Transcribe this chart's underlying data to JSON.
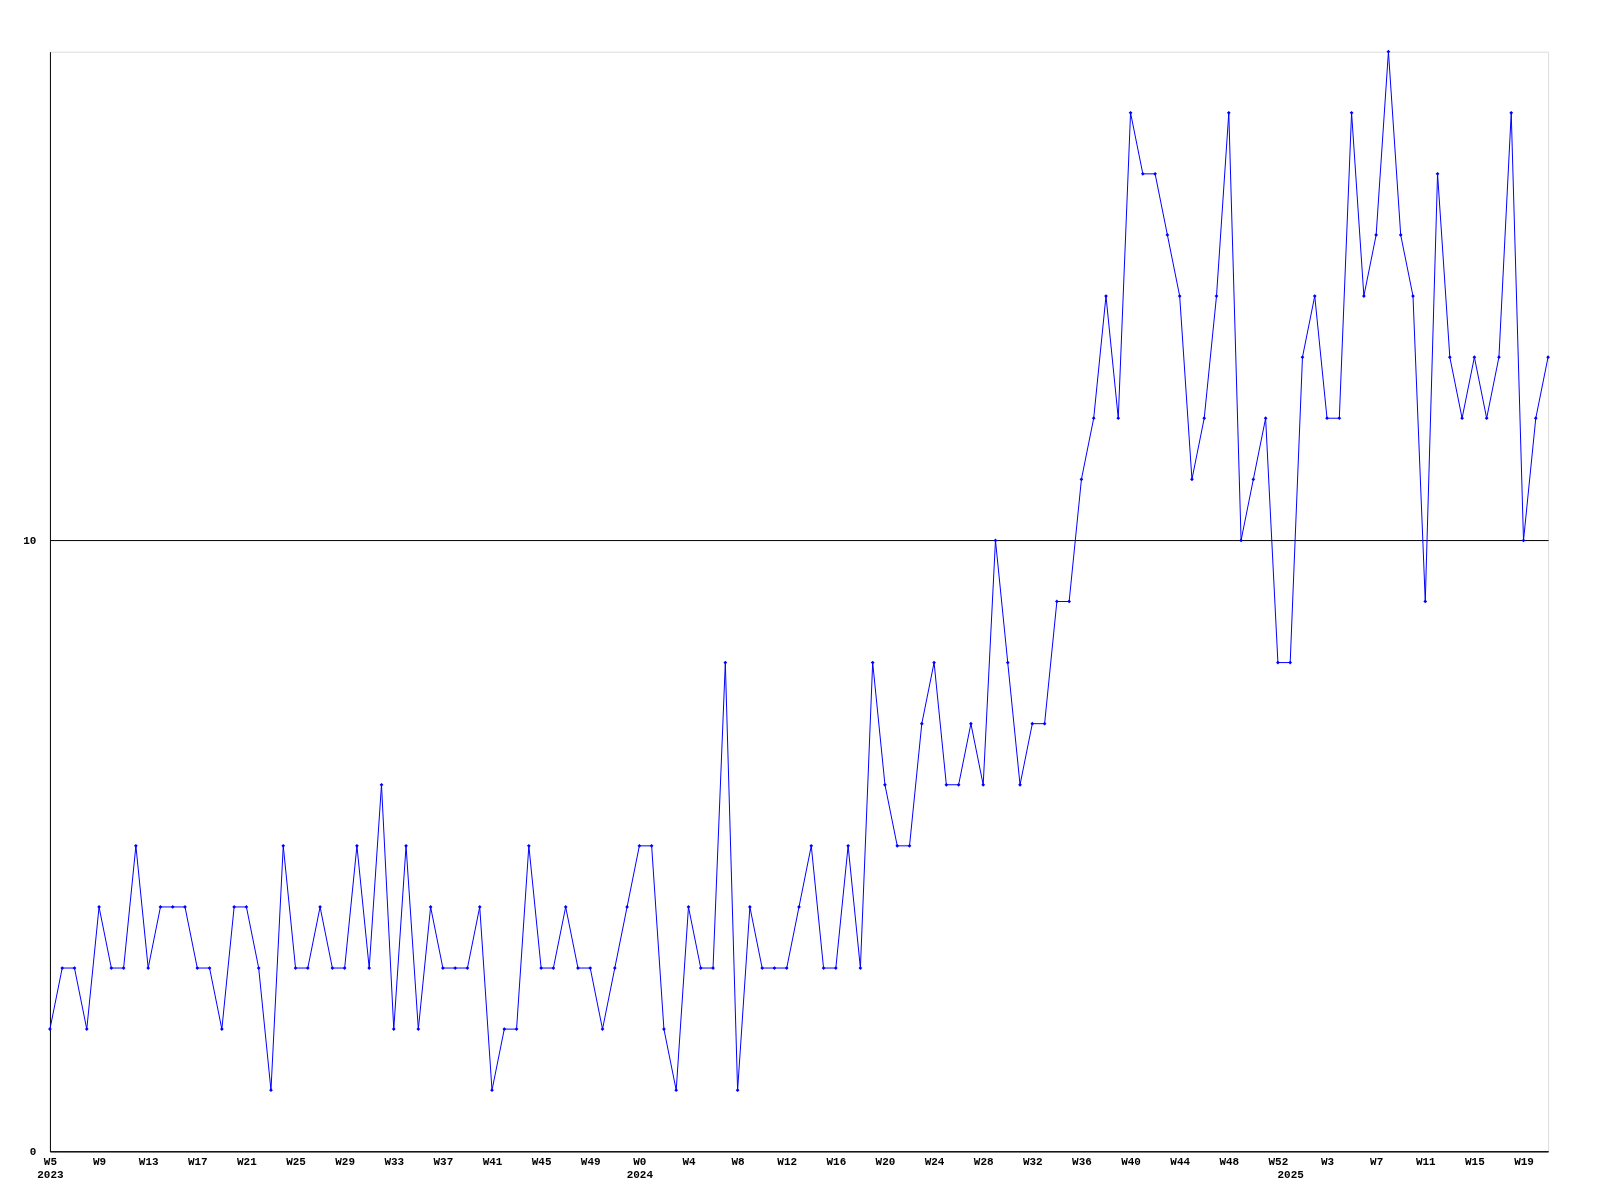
{
  "chart_data": {
    "type": "line",
    "categories": [
      "W5\n2023",
      null,
      null,
      null,
      "W9",
      null,
      null,
      null,
      "W13",
      null,
      null,
      null,
      "W17",
      null,
      null,
      null,
      "W21",
      null,
      null,
      null,
      "W25",
      null,
      null,
      null,
      "W29",
      null,
      null,
      null,
      "W33",
      null,
      null,
      null,
      "W37",
      null,
      null,
      null,
      "W41",
      null,
      null,
      null,
      "W45",
      null,
      null,
      null,
      "W49",
      null,
      null,
      null,
      "W0\n2024",
      null,
      null,
      null,
      "W4",
      null,
      null,
      null,
      "W8",
      null,
      null,
      null,
      "W12",
      null,
      null,
      null,
      "W16",
      null,
      null,
      null,
      "W20",
      null,
      null,
      null,
      "W24",
      null,
      null,
      null,
      "W28",
      null,
      null,
      null,
      "W32",
      null,
      null,
      null,
      "W36",
      null,
      null,
      null,
      "W40",
      null,
      null,
      null,
      "W44",
      null,
      null,
      null,
      "W48",
      null,
      null,
      null,
      "W52",
      "\n2025",
      null,
      null,
      "W3",
      null,
      null,
      null,
      "W7",
      null,
      null,
      null,
      "W11",
      null,
      null,
      null,
      "W15",
      null,
      null,
      null,
      "W19",
      null,
      null
    ],
    "series": [
      {
        "color": "#0000ff",
        "values": [
          2,
          3,
          3,
          2,
          4,
          3,
          3,
          5,
          3,
          4,
          4,
          4,
          3,
          3,
          2,
          4,
          4,
          3,
          1,
          5,
          3,
          3,
          4,
          3,
          3,
          5,
          3,
          6,
          2,
          5,
          2,
          4,
          3,
          3,
          3,
          4,
          1,
          2,
          2,
          5,
          3,
          3,
          4,
          3,
          3,
          2,
          3,
          4,
          5,
          5,
          2,
          1,
          4,
          3,
          3,
          8,
          1,
          4,
          3,
          3,
          3,
          4,
          5,
          3,
          3,
          5,
          3,
          8,
          6,
          5,
          5,
          7,
          8,
          6,
          6,
          7,
          6,
          10,
          8,
          6,
          7,
          7,
          9,
          9,
          11,
          12,
          14,
          12,
          17,
          16,
          16,
          15,
          14,
          11,
          12,
          14,
          17,
          10,
          11,
          12,
          8,
          8,
          13,
          14,
          12,
          12,
          17,
          14,
          15,
          18,
          15,
          14,
          9,
          16,
          13,
          12,
          13,
          12,
          13,
          17,
          10,
          12,
          13
        ]
      }
    ],
    "ylim": [
      0,
      18
    ],
    "yticks": [
      0,
      10
    ],
    "grid": "y",
    "marker": "diamond",
    "line_style": "solid"
  }
}
